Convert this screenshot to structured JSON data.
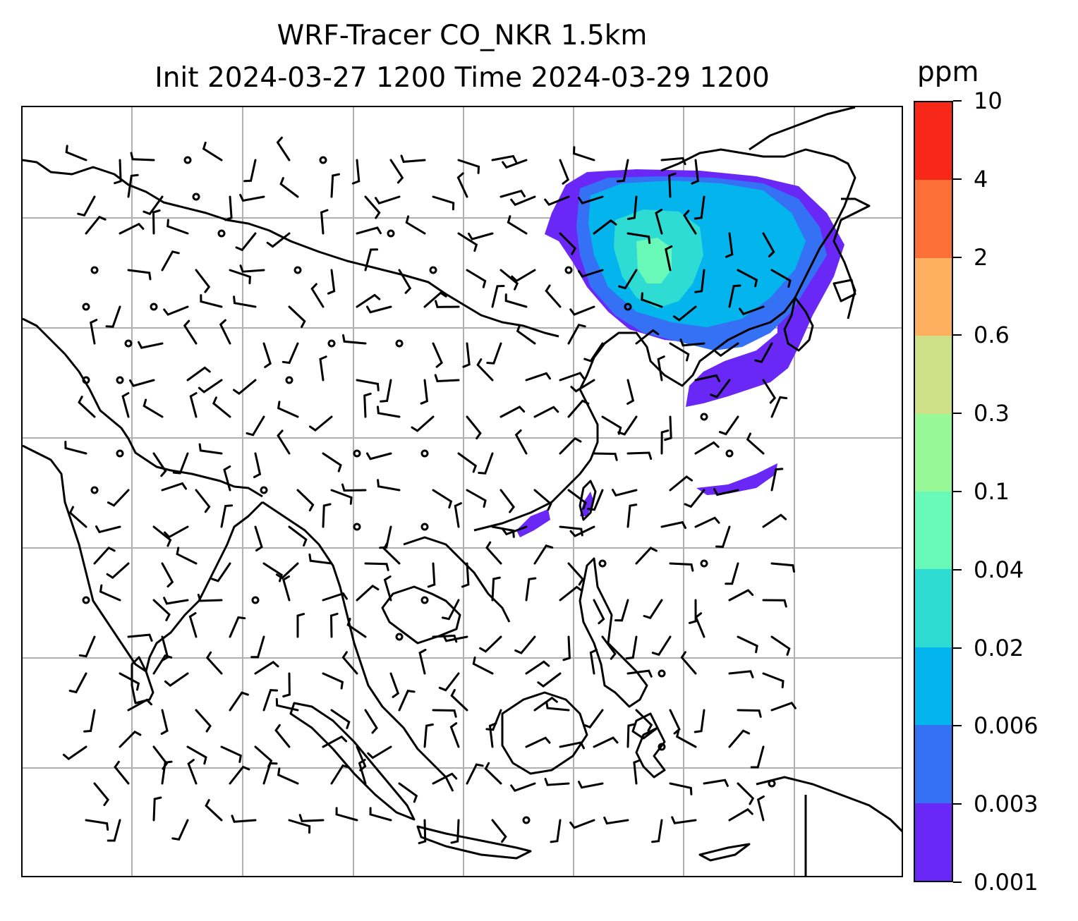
{
  "title": {
    "line1": "WRF-Tracer CO_NKR 1.5km",
    "line2": "Init 2024-03-27 1200 Time 2024-03-29 1200"
  },
  "colorbar": {
    "units": "ppm",
    "levels": [
      "0.001",
      "0.003",
      "0.006",
      "0.02",
      "0.04",
      "0.1",
      "0.3",
      "0.6",
      "2",
      "4",
      "10"
    ],
    "colors": [
      "#6a28f6",
      "#3471f4",
      "#04b4ec",
      "#2edcd4",
      "#68f8b8",
      "#98f898",
      "#d0e088",
      "#fcb060",
      "#fc7038",
      "#f82818"
    ]
  },
  "map": {
    "gridlines": true,
    "projection": "lon-lat",
    "plume_colors": {
      "outer": "#6a28f6",
      "mid": "#3471f4",
      "light": "#04b4ec",
      "core": "#2edcd4",
      "peak": "#68f8b8"
    }
  }
}
